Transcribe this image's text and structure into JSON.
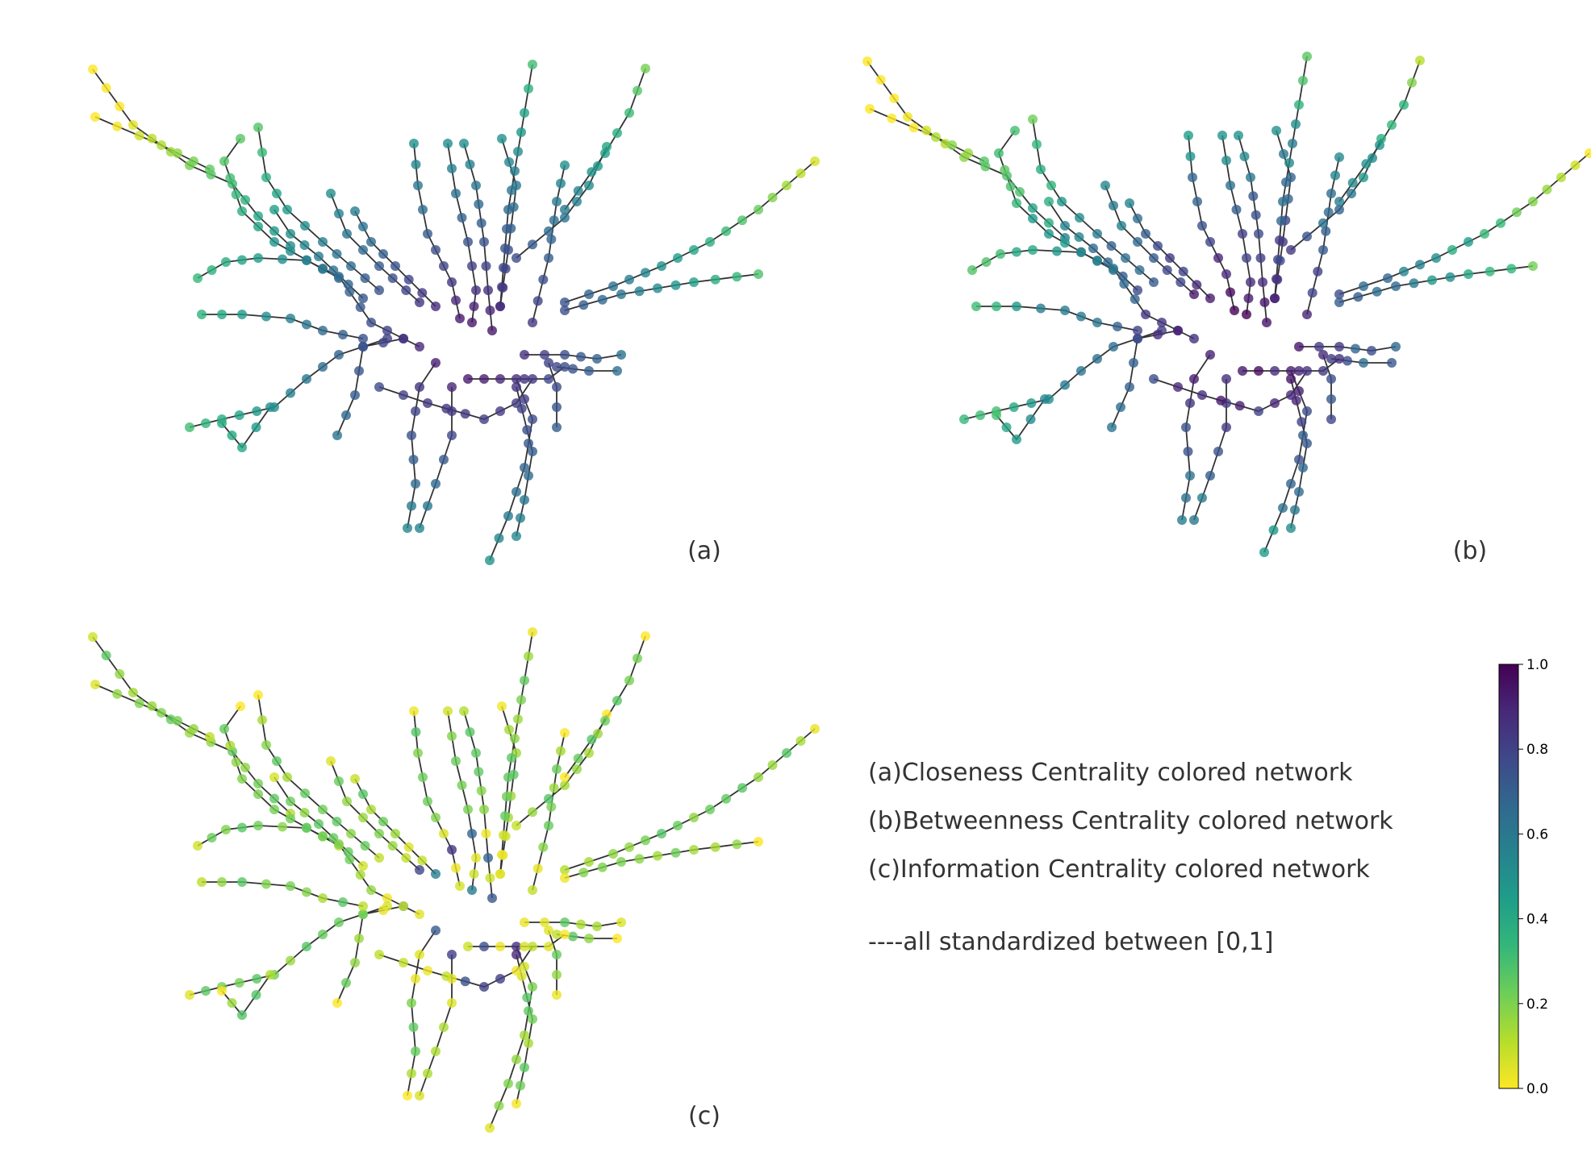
{
  "panels": [
    {
      "id": "a",
      "label": "(a)",
      "metric": "closeness",
      "seed": 11
    },
    {
      "id": "b",
      "label": "(b)",
      "metric": "betweenness",
      "seed": 23
    },
    {
      "id": "c",
      "label": "(c)",
      "metric": "information",
      "seed": 11
    }
  ],
  "legend": {
    "lines": [
      "(a)Closeness Centrality colored network",
      "(b)Betweenness Centrality colored network",
      "(c)Information Centrality colored network"
    ],
    "note": "----all standardized between [0,1]"
  },
  "colorbar": {
    "ticks": [
      "0.0",
      "0.2",
      "0.4",
      "0.6",
      "0.8",
      "1.0"
    ],
    "colors": [
      "#fde725",
      "#b5de2b",
      "#6ece58",
      "#35b779",
      "#1f9e89",
      "#26828e",
      "#31688e",
      "#3e4989",
      "#482878",
      "#440154"
    ]
  }
}
